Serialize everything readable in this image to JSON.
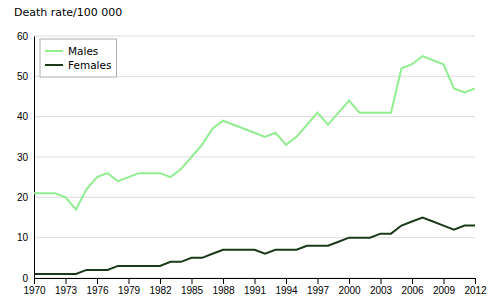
{
  "chart_data": {
    "type": "line",
    "ylabel": "Death rate/100 000",
    "x": [
      1970,
      1971,
      1972,
      1973,
      1974,
      1975,
      1976,
      1977,
      1978,
      1979,
      1980,
      1981,
      1982,
      1983,
      1984,
      1985,
      1986,
      1987,
      1988,
      1989,
      1990,
      1991,
      1992,
      1993,
      1994,
      1995,
      1996,
      1997,
      1998,
      1999,
      2000,
      2001,
      2002,
      2003,
      2004,
      2005,
      2006,
      2007,
      2008,
      2009,
      2010,
      2011,
      2012
    ],
    "series": [
      {
        "name": "Males",
        "color": "#90EE90",
        "values": [
          21,
          21,
          21,
          20,
          17,
          22,
          25,
          26,
          24,
          25,
          26,
          26,
          26,
          25,
          27,
          30,
          33,
          37,
          39,
          38,
          37,
          36,
          35,
          36,
          33,
          35,
          38,
          41,
          38,
          41,
          44,
          41,
          41,
          41,
          41,
          52,
          53,
          55,
          54,
          53,
          47,
          46,
          47
        ]
      },
      {
        "name": "Females",
        "color": "#1a3a1a",
        "values": [
          1,
          1,
          1,
          1,
          1,
          2,
          2,
          2,
          3,
          3,
          3,
          3,
          3,
          4,
          4,
          5,
          5,
          6,
          7,
          7,
          7,
          7,
          6,
          7,
          7,
          7,
          8,
          8,
          8,
          9,
          10,
          10,
          10,
          11,
          11,
          13,
          14,
          15,
          14,
          13,
          12,
          13,
          13
        ]
      }
    ],
    "xlim": [
      1970,
      2012
    ],
    "xticks": [
      1970,
      1973,
      1976,
      1979,
      1982,
      1985,
      1988,
      1991,
      1994,
      1997,
      2000,
      2003,
      2006,
      2009,
      2012
    ],
    "ylim": [
      0,
      60
    ],
    "yticks": [
      0,
      10,
      20,
      30,
      40,
      50,
      60
    ],
    "grid": true,
    "legend": "top-left"
  }
}
